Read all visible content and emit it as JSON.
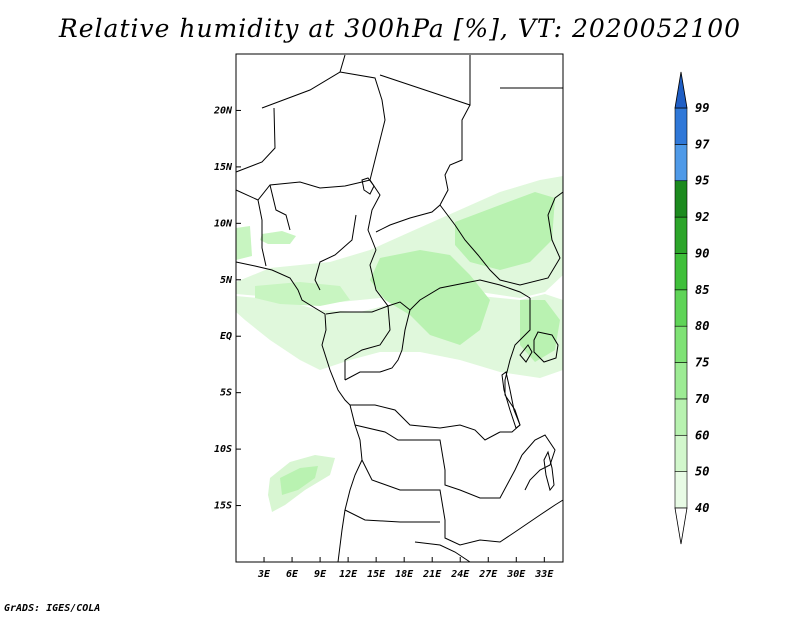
{
  "title": "Relative humidity at 300hPa [%], VT: 2020052100",
  "credit": "GrADS: IGES/COLA",
  "map": {
    "lat_ticks": [
      {
        "label": "20N",
        "lat": 20
      },
      {
        "label": "15N",
        "lat": 15
      },
      {
        "label": "10N",
        "lat": 10
      },
      {
        "label": "5N",
        "lat": 5
      },
      {
        "label": "EQ",
        "lat": 0
      },
      {
        "label": "5S",
        "lat": -5
      },
      {
        "label": "10S",
        "lat": -10
      },
      {
        "label": "15S",
        "lat": -15
      }
    ],
    "lon_ticks": [
      {
        "label": "3E",
        "lon": 3
      },
      {
        "label": "6E",
        "lon": 6
      },
      {
        "label": "9E",
        "lon": 9
      },
      {
        "label": "12E",
        "lon": 12
      },
      {
        "label": "15E",
        "lon": 15
      },
      {
        "label": "18E",
        "lon": 18
      },
      {
        "label": "21E",
        "lon": 21
      },
      {
        "label": "24E",
        "lon": 24
      },
      {
        "label": "27E",
        "lon": 27
      },
      {
        "label": "30E",
        "lon": 30
      },
      {
        "label": "33E",
        "lon": 33
      }
    ],
    "lon_range": [
      0,
      35
    ],
    "lat_range": [
      -20,
      25
    ]
  },
  "colorbar": {
    "levels": [
      {
        "label": "40",
        "color": "#ffffff"
      },
      {
        "label": "50",
        "color": "#e8fbe5"
      },
      {
        "label": "60",
        "color": "#d2f7cc"
      },
      {
        "label": "70",
        "color": "#b8f2b0"
      },
      {
        "label": "75",
        "color": "#9deb94"
      },
      {
        "label": "80",
        "color": "#7fe275"
      },
      {
        "label": "85",
        "color": "#5fd457"
      },
      {
        "label": "90",
        "color": "#3fbf3a"
      },
      {
        "label": "92",
        "color": "#2ca52a"
      },
      {
        "label": "95",
        "color": "#1c8a1e"
      },
      {
        "label": "97",
        "color": "#4f9ae8"
      },
      {
        "label": "99",
        "color": "#2f78d8"
      }
    ],
    "cap_top_color": "#1f5ec4",
    "cap_bottom_color": "#ffffff"
  }
}
